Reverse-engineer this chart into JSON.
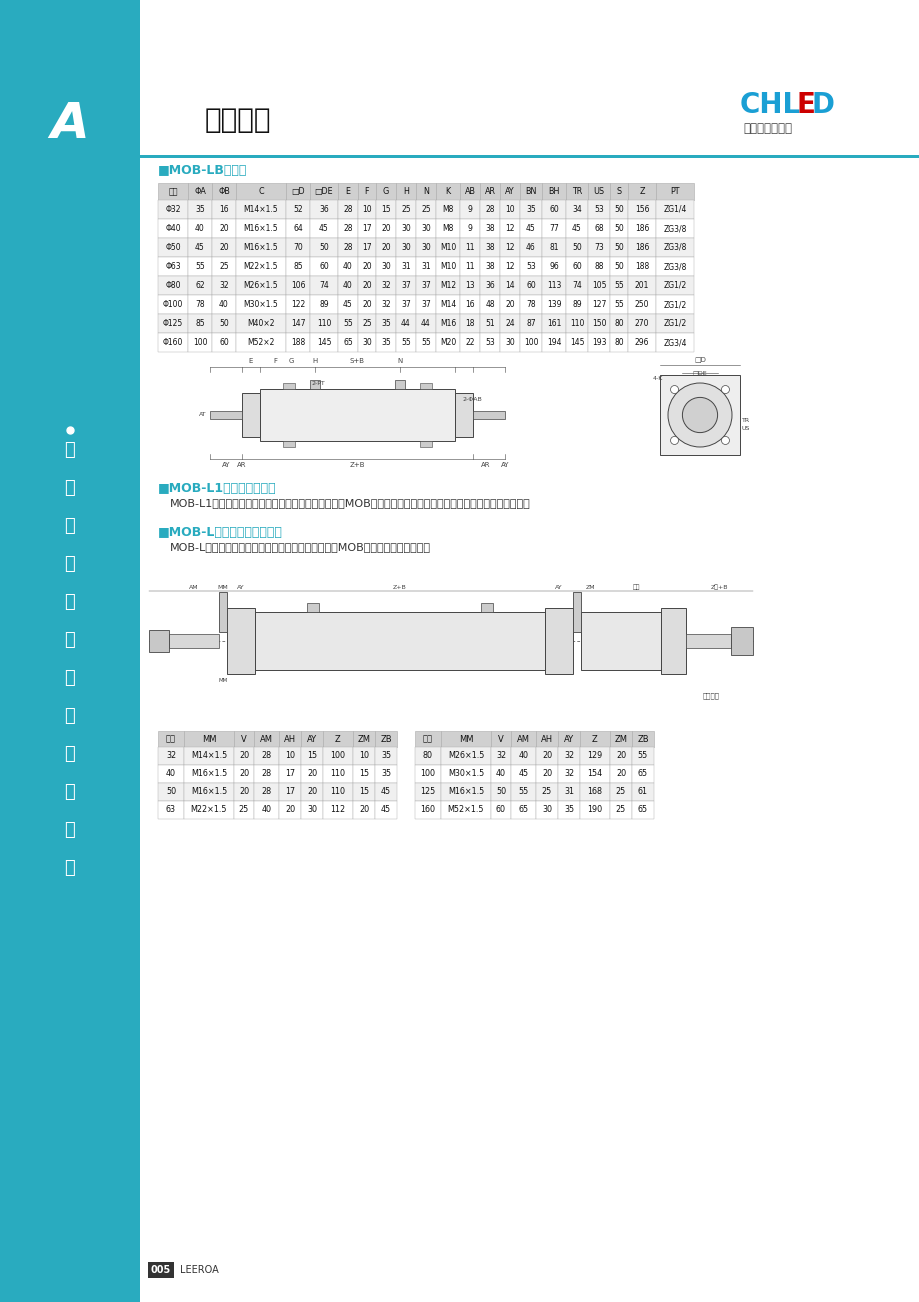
{
  "bg_color": "#ffffff",
  "sidebar_color": "#29ABBF",
  "sidebar_text_color": "#ffffff",
  "sidebar_texts": [
    "努",
    "力",
    "打",
    "造",
    "气",
    "动",
    "元",
    "件",
    "行",
    "业",
    "品",
    "牌"
  ],
  "header_title": "油缸系列",
  "header_letter": "A",
  "company_name_1": "CHL",
  "company_name_e": "E",
  "company_name_2": "D",
  "company_subtitle": "雷尔达气动液压",
  "section1_title": "■MOB-LB型油缸",
  "table1_headers": [
    "维号",
    "ΦA",
    "ΦB",
    "C",
    "□D",
    "□DE",
    "E",
    "F",
    "G",
    "H",
    "N",
    "K",
    "AB",
    "AR",
    "AY",
    "BN",
    "BH",
    "TR",
    "US",
    "S",
    "Z",
    "PT"
  ],
  "table1_rows": [
    [
      "Φ32",
      "35",
      "16",
      "M14×1.5",
      "52",
      "36",
      "28",
      "10",
      "15",
      "25",
      "25",
      "M8",
      "9",
      "28",
      "10",
      "35",
      "60",
      "34",
      "53",
      "50",
      "156",
      "ZG1/4"
    ],
    [
      "Φ40",
      "40",
      "20",
      "M16×1.5",
      "64",
      "45",
      "28",
      "17",
      "20",
      "30",
      "30",
      "M8",
      "9",
      "38",
      "12",
      "45",
      "77",
      "45",
      "68",
      "50",
      "186",
      "ZG3/8"
    ],
    [
      "Φ50",
      "45",
      "20",
      "M16×1.5",
      "70",
      "50",
      "28",
      "17",
      "20",
      "30",
      "30",
      "M10",
      "11",
      "38",
      "12",
      "46",
      "81",
      "50",
      "73",
      "50",
      "186",
      "ZG3/8"
    ],
    [
      "Φ63",
      "55",
      "25",
      "M22×1.5",
      "85",
      "60",
      "40",
      "20",
      "30",
      "31",
      "31",
      "M10",
      "11",
      "38",
      "12",
      "53",
      "96",
      "60",
      "88",
      "50",
      "188",
      "ZG3/8"
    ],
    [
      "Φ80",
      "62",
      "32",
      "M26×1.5",
      "106",
      "74",
      "40",
      "20",
      "32",
      "37",
      "37",
      "M12",
      "13",
      "36",
      "14",
      "60",
      "113",
      "74",
      "105",
      "55",
      "201",
      "ZG1/2"
    ],
    [
      "Φ100",
      "78",
      "40",
      "M30×1.5",
      "122",
      "89",
      "45",
      "20",
      "32",
      "37",
      "37",
      "M14",
      "16",
      "48",
      "20",
      "78",
      "139",
      "89",
      "127",
      "55",
      "250",
      "ZG1/2"
    ],
    [
      "Φ125",
      "85",
      "50",
      "M40×2",
      "147",
      "110",
      "55",
      "25",
      "35",
      "44",
      "44",
      "M16",
      "18",
      "51",
      "24",
      "87",
      "161",
      "110",
      "150",
      "80",
      "270",
      "ZG1/2"
    ],
    [
      "Φ160",
      "100",
      "60",
      "M52×2",
      "188",
      "145",
      "65",
      "30",
      "35",
      "55",
      "55",
      "M20",
      "22",
      "53",
      "30",
      "100",
      "194",
      "145",
      "193",
      "80",
      "296",
      "ZG3/4"
    ]
  ],
  "section2_title": "■MOB-L1型双活塞杆油缸",
  "section2_text": "MOB-L1型双活塞杆系列油缸，外形尺寸，安装方式按MOB标准油缸，两头伸出长度，按标准油缸前活塞杆长度。",
  "section3_title": "■MOB-L型双活塞杆可调油缸",
  "section3_text": "MOB-L型活塞杆可调系列油缸，前后盖安装尺寸均按MOB标准。其余尺寸请下图",
  "table2_headers": [
    "维号",
    "MM",
    "V",
    "AM",
    "AH",
    "AY",
    "Z",
    "ZM",
    "ZB"
  ],
  "table2_rows_left": [
    [
      "32",
      "M14×1.5",
      "20",
      "28",
      "10",
      "15",
      "100",
      "10",
      "35"
    ],
    [
      "40",
      "M16×1.5",
      "20",
      "28",
      "17",
      "20",
      "110",
      "15",
      "35"
    ],
    [
      "50",
      "M16×1.5",
      "20",
      "28",
      "17",
      "20",
      "110",
      "15",
      "45"
    ],
    [
      "63",
      "M22×1.5",
      "25",
      "40",
      "20",
      "30",
      "112",
      "20",
      "45"
    ]
  ],
  "table2_rows_right": [
    [
      "80",
      "M26×1.5",
      "32",
      "40",
      "20",
      "32",
      "129",
      "20",
      "55"
    ],
    [
      "100",
      "M30×1.5",
      "40",
      "45",
      "20",
      "32",
      "154",
      "20",
      "65"
    ],
    [
      "125",
      "M16×1.5",
      "50",
      "55",
      "25",
      "31",
      "168",
      "25",
      "61"
    ],
    [
      "160",
      "M52×1.5",
      "60",
      "65",
      "30",
      "35",
      "190",
      "25",
      "65"
    ]
  ],
  "footer_text": "005",
  "footer_brand": "LEEROA",
  "teal_color": "#29ABBF",
  "table_header_bg": "#d0d0d0",
  "table_row_bg1": "#f0f0f0",
  "table_row_bg2": "#ffffff",
  "table_border_color": "#aaaaaa"
}
